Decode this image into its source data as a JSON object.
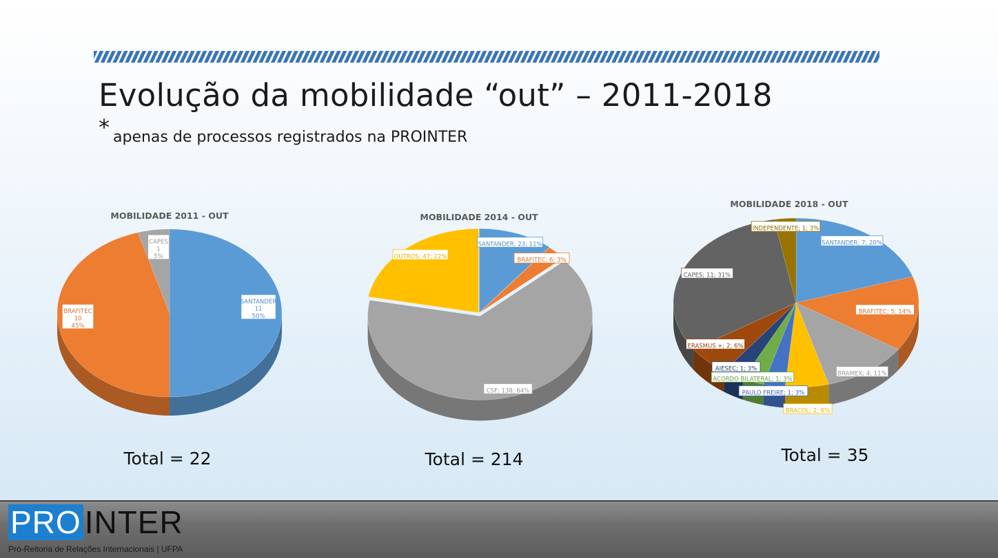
{
  "slide": {
    "title": "Evolução da mobilidade “out” – 2011-2018",
    "asterisk": "*",
    "subtitle": "apenas de processos registrados na PROINTER"
  },
  "logo": {
    "pro": "PRO",
    "inter": "INTER",
    "subtitle": "Pró-Reitoria de Relações Internacionais | UFPA"
  },
  "chart_data": [
    {
      "type": "pie",
      "title": "MOBILIDADE 2011 - OUT",
      "total_label": "Total = 22",
      "colors": [
        "#5b9bd5",
        "#ed7d31",
        "#a5a5a5"
      ],
      "slices": [
        {
          "name": "SANTANDER",
          "value": 11,
          "percent": "50%"
        },
        {
          "name": "BRAFITEC",
          "value": 10,
          "percent": "45%"
        },
        {
          "name": "CAPES",
          "value": 1,
          "percent": "5%"
        }
      ]
    },
    {
      "type": "pie",
      "title": "MOBILIDADE 2014 - OUT",
      "total_label": "Total = 214",
      "colors": [
        "#5b9bd5",
        "#ed7d31",
        "#a5a5a5",
        "#ffc000"
      ],
      "slices": [
        {
          "name": "SANTANDER",
          "value": 23,
          "percent": "11%"
        },
        {
          "name": "BRAFITEC",
          "value": 6,
          "percent": "3%"
        },
        {
          "name": "CSF",
          "value": 138,
          "percent": "64%"
        },
        {
          "name": "OUTROS",
          "value": 47,
          "percent": "22%"
        }
      ]
    },
    {
      "type": "pie",
      "title": "MOBILIDADE 2018 - OUT",
      "total_label": "Total = 35",
      "colors": [
        "#5b9bd5",
        "#ed7d31",
        "#a5a5a5",
        "#ffc000",
        "#4472c4",
        "#70ad47",
        "#264478",
        "#9e480e",
        "#636363",
        "#997300"
      ],
      "slices": [
        {
          "name": "SANTANDER",
          "value": 7,
          "percent": "20%"
        },
        {
          "name": "BRAFITEC",
          "value": 5,
          "percent": "14%"
        },
        {
          "name": "BRAMEX",
          "value": 4,
          "percent": "11%"
        },
        {
          "name": "BRACOL",
          "value": 2,
          "percent": "6%"
        },
        {
          "name": "PAULO FREIRE",
          "value": 1,
          "percent": "3%"
        },
        {
          "name": "ACORDO BILATERAL",
          "value": 1,
          "percent": "3%"
        },
        {
          "name": "AIESEC",
          "value": 1,
          "percent": "3%"
        },
        {
          "name": "ERASMUS +",
          "value": 2,
          "percent": "6%"
        },
        {
          "name": "CAPES",
          "value": 11,
          "percent": "31%"
        },
        {
          "name": "INDEPENDENTE",
          "value": 1,
          "percent": "3%"
        }
      ]
    }
  ]
}
